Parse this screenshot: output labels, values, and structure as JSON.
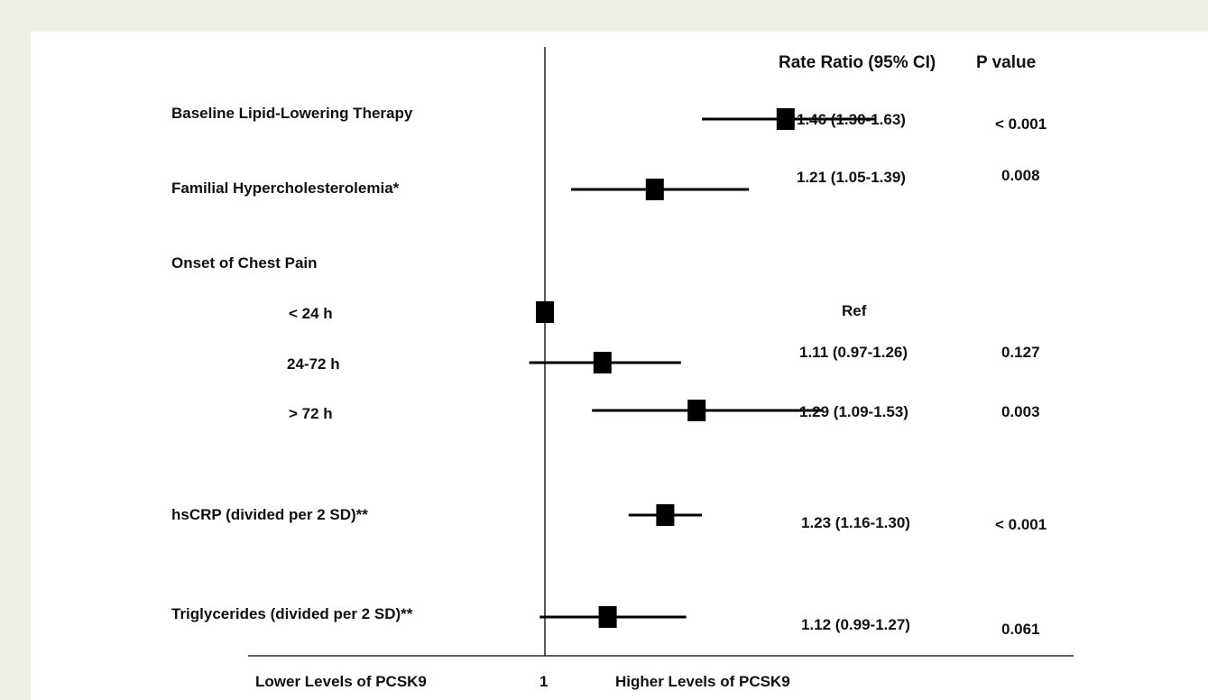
{
  "chart_data": {
    "type": "forest",
    "title": "",
    "column_headers": {
      "estimate": "Rate Ratio  (95% CI)",
      "p": "P value"
    },
    "rows": [
      {
        "label": "Baseline Lipid-Lowering Therapy",
        "rr": 1.46,
        "lo": 1.3,
        "hi": 1.63,
        "estimate": "1.46  (1.30-1.63)",
        "p": "< 0.001"
      },
      {
        "label": "Familial Hypercholesterolemia*",
        "rr": 1.21,
        "lo": 1.05,
        "hi": 1.39,
        "estimate": "1.21  (1.05-1.39)",
        "p": "0.008"
      },
      {
        "label": "Onset of Chest Pain",
        "header": true
      },
      {
        "label": "< 24 h",
        "rr": 1.0,
        "ref": true,
        "estimate": "Ref",
        "p": ""
      },
      {
        "label": "24-72 h",
        "rr": 1.11,
        "lo": 0.97,
        "hi": 1.26,
        "estimate": "1.11  (0.97-1.26)",
        "p": "0.127"
      },
      {
        "label": "> 72 h",
        "rr": 1.29,
        "lo": 1.09,
        "hi": 1.53,
        "estimate": "1.29  (1.09-1.53)",
        "p": "0.003"
      },
      {
        "label": "hsCRP  (divided per 2 SD)**",
        "rr": 1.23,
        "lo": 1.16,
        "hi": 1.3,
        "estimate": "1.23  (1.16-1.30)",
        "p": "< 0.001"
      },
      {
        "label": "Triglycerides (divided per 2 SD)**",
        "rr": 1.12,
        "lo": 0.99,
        "hi": 1.27,
        "estimate": "1.12 (0.99-1.27)",
        "p": "0.061"
      }
    ],
    "reference_value": 1,
    "axis": {
      "left_label": "Lower Levels of PCSK9",
      "center_label": "1",
      "right_label": "Higher Levels of PCSK9"
    },
    "marker_color": "#000000"
  }
}
